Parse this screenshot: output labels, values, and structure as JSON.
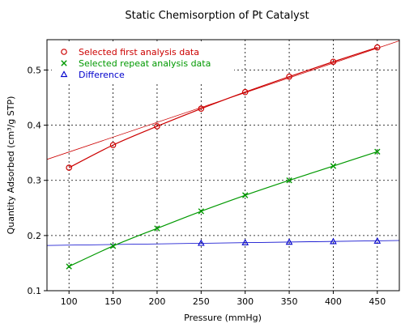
{
  "chart_data": {
    "type": "scatter",
    "title": "Static Chemisorption of Pt Catalyst",
    "xlabel": "Pressure (mmHg)",
    "ylabel": "Quantity Adsorbed (cm³/g STP)",
    "x_ticks": [
      "100",
      "150",
      "200",
      "250",
      "300",
      "350",
      "400",
      "450"
    ],
    "y_ticks": [
      "0.1",
      "0.2",
      "0.3",
      "0.4",
      "0.5"
    ],
    "xlim": [
      75,
      475
    ],
    "ylim": [
      0.1,
      0.555
    ],
    "grid": true,
    "legend_position": "top-left",
    "series": [
      {
        "name": "Selected first analysis data",
        "color": "#cc0000",
        "marker": "circle",
        "x": [
          100,
          150,
          200,
          250,
          300,
          350,
          400,
          450
        ],
        "y": [
          0.323,
          0.364,
          0.398,
          0.43,
          0.46,
          0.488,
          0.515,
          0.541
        ]
      },
      {
        "name": "Selected repeat analysis data",
        "color": "#009900",
        "marker": "x",
        "x": [
          100,
          150,
          200,
          250,
          300,
          350,
          400,
          450
        ],
        "y": [
          0.144,
          0.181,
          0.213,
          0.244,
          0.273,
          0.3,
          0.326,
          0.352
        ]
      },
      {
        "name": "Difference",
        "color": "#0000cc",
        "marker": "triangle",
        "x": [
          250,
          300,
          350,
          400,
          450
        ],
        "y": [
          0.186,
          0.187,
          0.188,
          0.189,
          0.19
        ]
      }
    ],
    "fit_lines": [
      {
        "series": "Selected first analysis data",
        "color": "#cc0000",
        "x": [
          75,
          475
        ],
        "y": [
          0.338,
          0.553
        ]
      },
      {
        "series": "Difference",
        "color": "#0000cc",
        "x": [
          75,
          475
        ],
        "y": [
          0.182,
          0.191
        ]
      }
    ]
  }
}
